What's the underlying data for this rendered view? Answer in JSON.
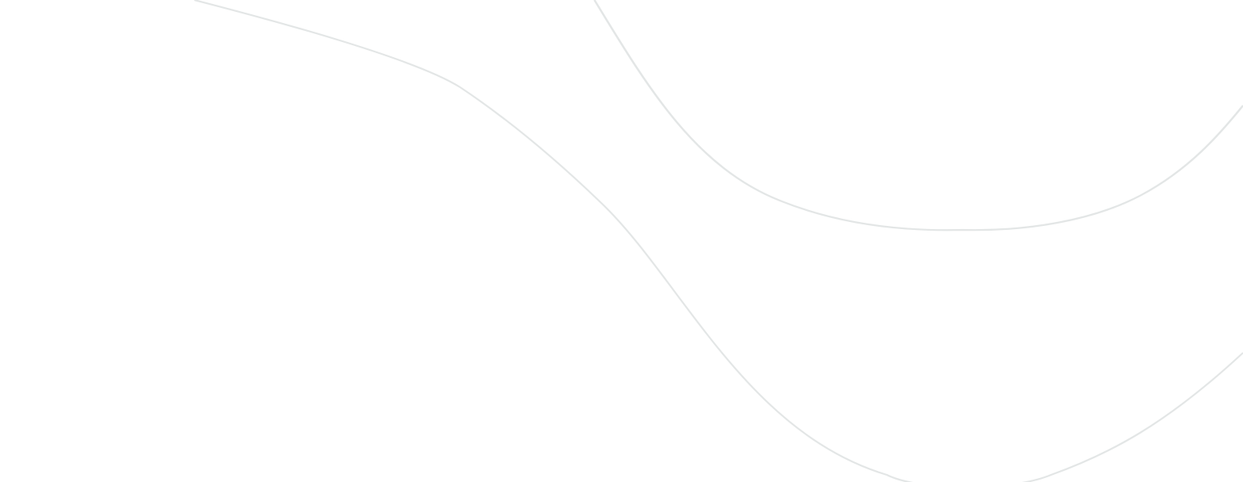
{
  "background": {
    "color": "#ffffff",
    "line_color": "#e3e6e6",
    "decoration": "curved-lines"
  }
}
